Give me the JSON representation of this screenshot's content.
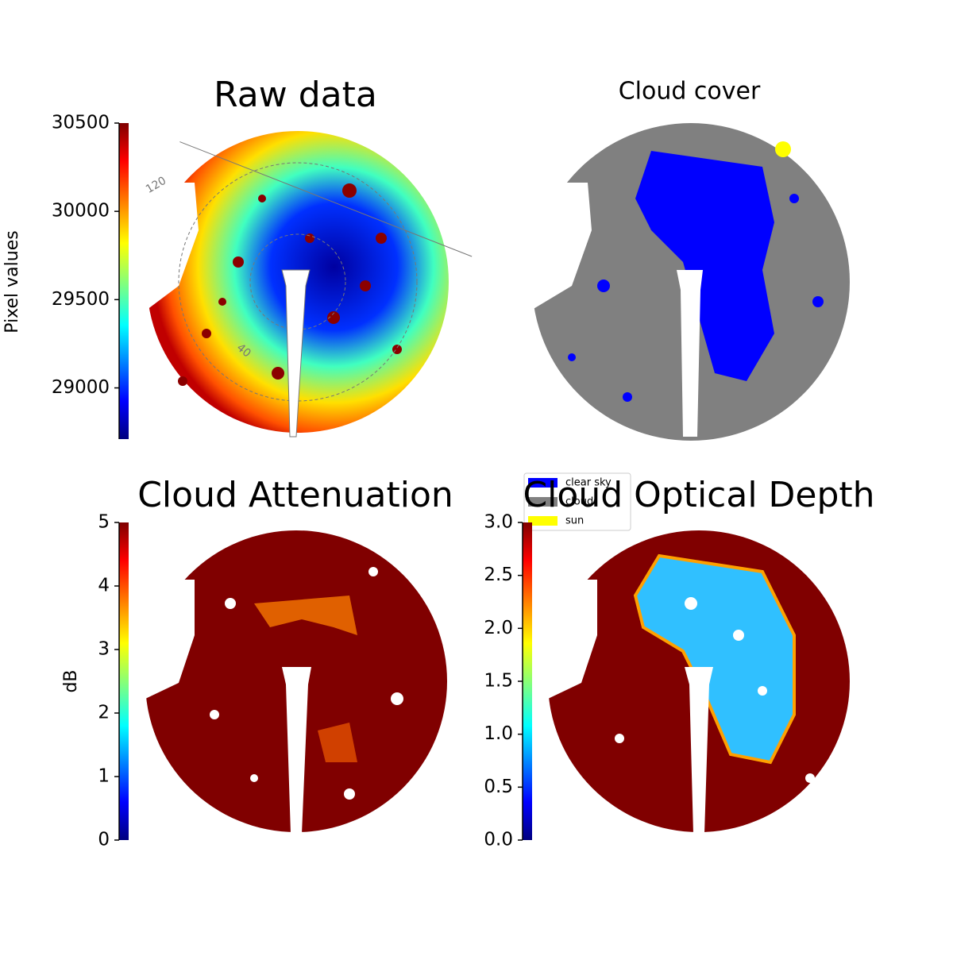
{
  "chart_data": [
    {
      "type": "image",
      "title": "Raw data",
      "colorbar_label": "Pixel values",
      "colormap": "jet",
      "clim": [
        28710,
        30500
      ],
      "cticks": [
        29000,
        29500,
        30000,
        30500
      ],
      "annotations": [
        "120",
        "40"
      ]
    },
    {
      "type": "image",
      "title": "Cloud cover",
      "series": [
        {
          "name": "clear sky",
          "color": "#0000ff"
        },
        {
          "name": "cloud",
          "color": "#808080"
        },
        {
          "name": "sun",
          "color": "#ffff00"
        }
      ]
    },
    {
      "type": "image",
      "title": "Cloud Attenuation",
      "colorbar_label": "dB",
      "colormap": "jet",
      "clim": [
        0,
        5
      ],
      "cticks": [
        0,
        1,
        2,
        3,
        4,
        5
      ]
    },
    {
      "type": "image",
      "title": "Cloud Optical Depth",
      "colormap": "jet",
      "clim": [
        0,
        3
      ],
      "cticks": [
        {
          "value": 0,
          "label": "0.0"
        },
        {
          "value": 0.5,
          "label": "0.5"
        },
        {
          "value": 1,
          "label": "1.0"
        },
        {
          "value": 1.5,
          "label": "1.5"
        },
        {
          "value": 2,
          "label": "2.0"
        },
        {
          "value": 2.5,
          "label": "2.5"
        },
        {
          "value": 3,
          "label": "3.0"
        }
      ]
    }
  ]
}
